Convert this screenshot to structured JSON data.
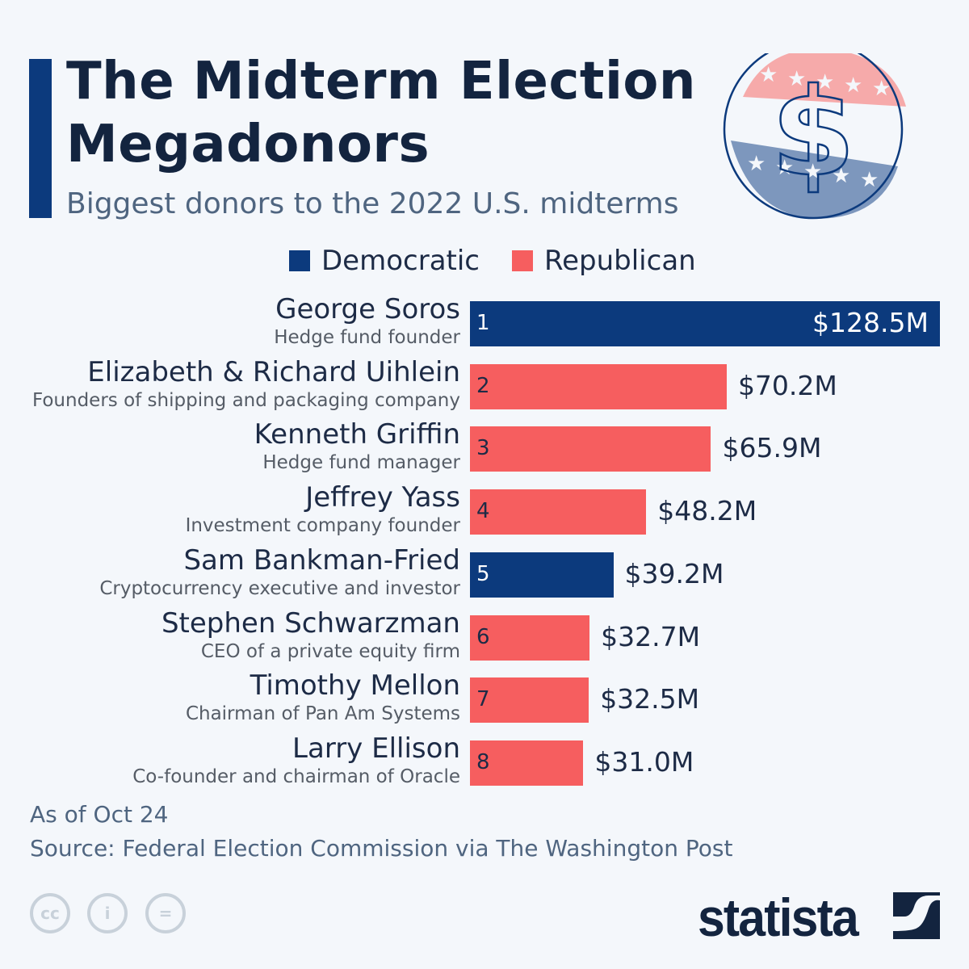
{
  "header": {
    "title_line1": "The Midterm Election",
    "title_line2": "Megadonors",
    "subtitle": "Biggest donors to the 2022 U.S. midterms"
  },
  "colors": {
    "Democratic": "#0c3a7d",
    "Republican": "#f65e5f",
    "background": "#f4f7fb"
  },
  "chart_data": {
    "type": "bar",
    "orientation": "horizontal",
    "legend": [
      {
        "name": "Democratic",
        "color": "#0c3a7d"
      },
      {
        "name": "Republican",
        "color": "#f65e5f"
      }
    ],
    "legend_position": "top",
    "grid": false,
    "unit": "$M",
    "rows": [
      {
        "rank": "1",
        "name": "George Soros",
        "desc": "Hedge fund founder",
        "party": "Democratic",
        "value": 128.5,
        "label": "$128.5M"
      },
      {
        "rank": "2",
        "name": "Elizabeth & Richard Uihlein",
        "desc": "Founders of shipping and packaging company",
        "party": "Republican",
        "value": 70.2,
        "label": "$70.2M"
      },
      {
        "rank": "3",
        "name": "Kenneth Griffin",
        "desc": "Hedge fund manager",
        "party": "Republican",
        "value": 65.9,
        "label": "$65.9M"
      },
      {
        "rank": "4",
        "name": "Jeffrey Yass",
        "desc": "Investment company founder",
        "party": "Republican",
        "value": 48.2,
        "label": "$48.2M"
      },
      {
        "rank": "5",
        "name": "Sam Bankman-Fried",
        "desc": "Cryptocurrency executive and investor",
        "party": "Democratic",
        "value": 39.2,
        "label": "$39.2M"
      },
      {
        "rank": "6",
        "name": "Stephen Schwarzman",
        "desc": "CEO of a private equity firm",
        "party": "Republican",
        "value": 32.7,
        "label": "$32.7M"
      },
      {
        "rank": "7",
        "name": "Timothy Mellon",
        "desc": "Chairman of Pan Am Systems",
        "party": "Republican",
        "value": 32.5,
        "label": "$32.5M"
      },
      {
        "rank": "8",
        "name": "Larry Ellison",
        "desc": "Co-founder and chairman of Oracle",
        "party": "Republican",
        "value": 31.0,
        "label": "$31.0M"
      }
    ]
  },
  "footer": {
    "note": "As of Oct 24",
    "source": "Source: Federal Election Commission via The Washington Post",
    "logo": "statista",
    "license_icons": [
      "cc-icon",
      "attribution-icon",
      "no-derivatives-icon"
    ]
  }
}
